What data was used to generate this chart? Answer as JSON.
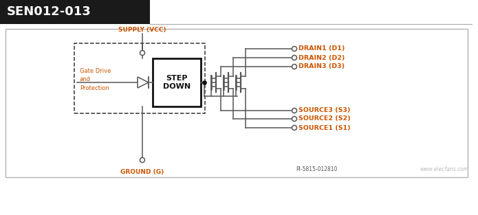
{
  "title": "SEN012-013",
  "title_bg": "#1a1a1a",
  "title_color": "#ffffff",
  "line_color": "#555555",
  "orange_color": "#cc5500",
  "label_drain1": "DRAIN1 (D1)",
  "label_drain2": "DRAIN2 (D2)",
  "label_drain3": "DRAIN3 (D3)",
  "label_source1": "SOURCE1 (S1)",
  "label_source2": "SOURCE2 (S2)",
  "label_source3": "SOURCE3 (S3)",
  "label_supply": "SUPPLY (VCC)",
  "label_ground": "GROUND (G)",
  "label_gate": "Gate Drive\nand\nProtection",
  "label_step": "STEP\nDOWN",
  "label_pi": "PI-5815-012810",
  "watermark": "www.elecfans.com",
  "fig_w": 6.95,
  "fig_h": 3.13,
  "dpi": 100
}
